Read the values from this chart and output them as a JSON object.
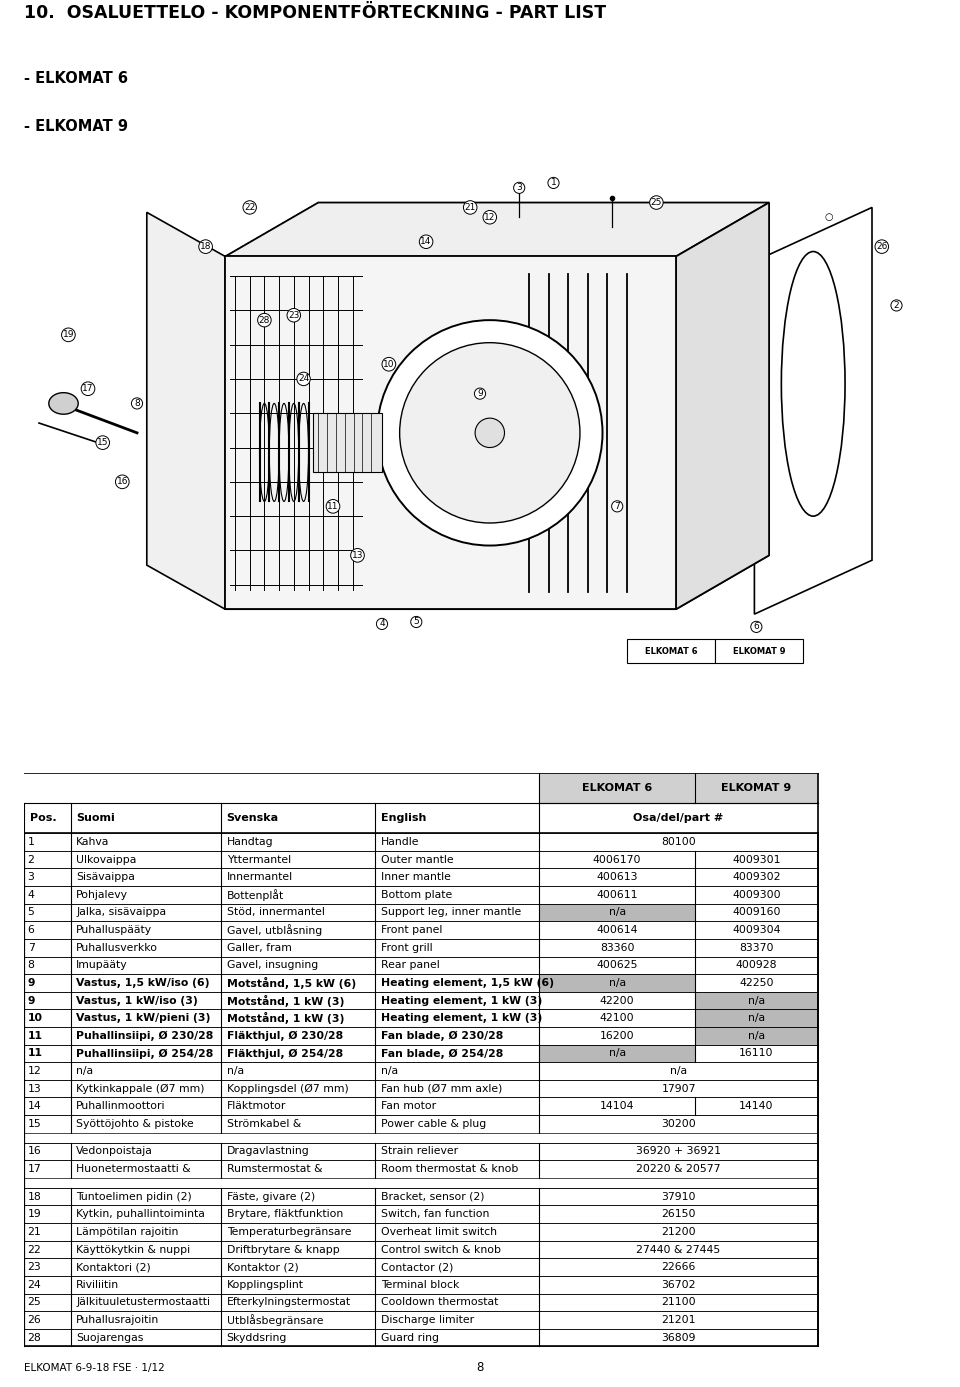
{
  "title": "10.  OSALUETTELO - KOMPONENTFÖRTECKNING - PART LIST",
  "subtitle1": "- ELKOMAT 6",
  "subtitle2": "- ELKOMAT 9",
  "rows": [
    [
      "1",
      "Kahva",
      "Handtag",
      "Handle",
      "80100",
      "80100",
      true,
      false,
      false
    ],
    [
      "2",
      "Ulkovaippa",
      "Yttermantel",
      "Outer mantle",
      "4006170",
      "4009301",
      false,
      false,
      false
    ],
    [
      "3",
      "Sisävaippa",
      "Innermantel",
      "Inner mantle",
      "400613",
      "4009302",
      false,
      false,
      false
    ],
    [
      "4",
      "Pohjalevy",
      "Bottenplåt",
      "Bottom plate",
      "400611",
      "4009300",
      false,
      false,
      false
    ],
    [
      "5",
      "Jalka, sisävaippa",
      "Stöd, innermantel",
      "Support leg, inner mantle",
      "n/a",
      "4009160",
      false,
      true,
      false
    ],
    [
      "6",
      "Puhalluspääty",
      "Gavel, utblåsning",
      "Front panel",
      "400614",
      "4009304",
      false,
      false,
      false
    ],
    [
      "7",
      "Puhallusverkko",
      "Galler, fram",
      "Front grill",
      "83360",
      "83370",
      false,
      false,
      false
    ],
    [
      "8",
      "Imupääty",
      "Gavel, insugning",
      "Rear panel",
      "400625",
      "400928",
      false,
      false,
      false
    ],
    [
      "9",
      "Vastus, 1,5 kW/iso (6)",
      "Motstånd, 1,5 kW (6)",
      "Heating element, 1,5 kW (6)",
      "n/a",
      "42250",
      false,
      true,
      false
    ],
    [
      "9",
      "Vastus, 1 kW/iso (3)",
      "Motstånd, 1 kW (3)",
      "Heating element, 1 kW (3)",
      "42200",
      "n/a",
      false,
      false,
      true
    ],
    [
      "10",
      "Vastus, 1 kW/pieni (3)",
      "Motstånd, 1 kW (3)",
      "Heating element, 1 kW (3)",
      "42100",
      "n/a",
      false,
      false,
      true
    ],
    [
      "11",
      "Puhallinsiipi, Ø 230/28",
      "Fläkthjul, Ø 230/28",
      "Fan blade, Ø 230/28",
      "16200",
      "n/a",
      false,
      false,
      true
    ],
    [
      "11",
      "Puhallinsiipi, Ø 254/28",
      "Fläkthjul, Ø 254/28",
      "Fan blade, Ø 254/28",
      "n/a",
      "16110",
      false,
      true,
      false
    ],
    [
      "12",
      "n/a",
      "n/a",
      "n/a",
      "n/a",
      "n/a",
      true,
      false,
      false
    ],
    [
      "13",
      "Kytkinkappale (Ø7 mm)",
      "Kopplingsdel (Ø7 mm)",
      "Fan hub (Ø7 mm axle)",
      "17907",
      "17907",
      true,
      false,
      false
    ],
    [
      "14",
      "Puhallinmoottori",
      "Fläktmotor",
      "Fan motor",
      "14104",
      "14140",
      false,
      false,
      false
    ],
    [
      "15",
      "Syöttöjohto & pistoke",
      "Strömkabel &",
      "Power cable & plug",
      "30200",
      "30200",
      true,
      false,
      false
    ],
    [
      "",
      "",
      "",
      "",
      "",
      "",
      false,
      false,
      false
    ],
    [
      "16",
      "Vedonpoistaja",
      "Dragavlastning",
      "Strain reliever",
      "36920 + 36921",
      "36920 + 36921",
      true,
      false,
      false
    ],
    [
      "17",
      "Huonetermostaatti &",
      "Rumstermostat &",
      "Room thermostat & knob",
      "20220 & 20577",
      "20220 & 20577",
      true,
      false,
      false
    ],
    [
      "",
      "",
      "",
      "",
      "",
      "",
      false,
      false,
      false
    ],
    [
      "18",
      "Tuntoelimen pidin (2)",
      "Fäste, givare (2)",
      "Bracket, sensor (2)",
      "37910",
      "37910",
      true,
      false,
      false
    ],
    [
      "19",
      "Kytkin, puhallintoiminta",
      "Brytare, fläktfunktion",
      "Switch, fan function",
      "26150",
      "26150",
      true,
      false,
      false
    ],
    [
      "21",
      "Lämpötilan rajoitin",
      "Temperaturbegränsare",
      "Overheat limit switch",
      "21200",
      "21200",
      true,
      false,
      false
    ],
    [
      "22",
      "Käyttökytkin & nuppi",
      "Driftbrytare & knapp",
      "Control switch & knob",
      "27440 & 27445",
      "27440 & 27445",
      true,
      false,
      false
    ],
    [
      "23",
      "Kontaktori (2)",
      "Kontaktor (2)",
      "Contactor (2)",
      "22666",
      "22666",
      true,
      false,
      false
    ],
    [
      "24",
      "Riviliitin",
      "Kopplingsplint",
      "Terminal block",
      "36702",
      "36702",
      true,
      false,
      false
    ],
    [
      "25",
      "Jälkituuletustermostaatti",
      "Efterkylningstermostat",
      "Cooldown thermostat",
      "21100",
      "21100",
      true,
      false,
      false
    ],
    [
      "26",
      "Puhallusrajoitin",
      "Utblåsbegränsare",
      "Discharge limiter",
      "21201",
      "21201",
      true,
      false,
      false
    ],
    [
      "28",
      "Suojarengas",
      "Skyddsring",
      "Guard ring",
      "36809",
      "36809",
      true,
      false,
      false
    ]
  ],
  "footer_left": "ELKOMAT 6-9-18 FSE · 1/12",
  "footer_center": "8"
}
